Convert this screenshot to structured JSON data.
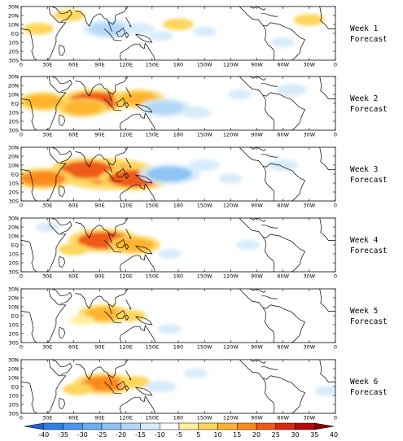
{
  "panels": [
    {
      "label_line1": "Week 1",
      "label_line2": "Forecast"
    },
    {
      "label_line1": "Week 2",
      "label_line2": "Forecast"
    },
    {
      "label_line1": "Week 3",
      "label_line2": "Forecast"
    },
    {
      "label_line1": "Week 4",
      "label_line2": "Forecast"
    },
    {
      "label_line1": "Week 5",
      "label_line2": "Forecast"
    },
    {
      "label_line1": "Week 6",
      "label_line2": "Forecast"
    }
  ],
  "lat_ticks": [
    "30N",
    "20N",
    "10N",
    "EQ",
    "10S",
    "20S",
    "30S"
  ],
  "lon_ticks": [
    "0",
    "30E",
    "60E",
    "90E",
    "120E",
    "150E",
    "180",
    "150W",
    "120W",
    "90W",
    "60W",
    "30W",
    "0"
  ],
  "colorbar": {
    "labels": [
      "-40",
      "-35",
      "-30",
      "-25",
      "-20",
      "-15",
      "-10",
      "-5",
      "5",
      "10",
      "15",
      "20",
      "25",
      "30",
      "35",
      "40"
    ],
    "colors": [
      "#1f5fd8",
      "#2f7fe8",
      "#4a96ee",
      "#6aaef2",
      "#8ec4f4",
      "#b3d8f7",
      "#d7ecfa",
      "#ffffff",
      "#fff0a0",
      "#ffd65c",
      "#ffb42e",
      "#fb8a1a",
      "#ef5a14",
      "#d8280f",
      "#b40a0a",
      "#8a0000"
    ]
  },
  "anomaly_features": [
    {
      "panel": 1,
      "items": [
        {
          "lon": 100,
          "lat": 5,
          "value": -15
        },
        {
          "lon": 135,
          "lat": 5,
          "value": -10
        },
        {
          "lon": 160,
          "lat": -3,
          "value": -5
        },
        {
          "lon": 210,
          "lat": 2,
          "value": -5
        },
        {
          "lon": 55,
          "lat": 20,
          "value": 10
        },
        {
          "lon": 20,
          "lat": 5,
          "value": 10
        },
        {
          "lon": 180,
          "lat": 10,
          "value": 10
        },
        {
          "lon": 330,
          "lat": 15,
          "value": 10
        },
        {
          "lon": 300,
          "lat": -10,
          "value": -5
        }
      ]
    },
    {
      "panel": 2,
      "items": [
        {
          "lon": 85,
          "lat": 3,
          "value": 25
        },
        {
          "lon": 70,
          "lat": -5,
          "value": 15
        },
        {
          "lon": 25,
          "lat": 2,
          "value": 15
        },
        {
          "lon": 135,
          "lat": 5,
          "value": 15
        },
        {
          "lon": 165,
          "lat": -5,
          "value": -15
        },
        {
          "lon": 200,
          "lat": -10,
          "value": -10
        },
        {
          "lon": 310,
          "lat": 15,
          "value": -10
        },
        {
          "lon": 250,
          "lat": 10,
          "value": -5
        }
      ]
    },
    {
      "panel": 3,
      "items": [
        {
          "lon": 100,
          "lat": 0,
          "value": 40
        },
        {
          "lon": 75,
          "lat": 5,
          "value": 25
        },
        {
          "lon": 130,
          "lat": -5,
          "value": 25
        },
        {
          "lon": 25,
          "lat": -5,
          "value": 20
        },
        {
          "lon": 170,
          "lat": 0,
          "value": -20
        },
        {
          "lon": 210,
          "lat": 10,
          "value": -10
        },
        {
          "lon": 300,
          "lat": 10,
          "value": -10
        },
        {
          "lon": 240,
          "lat": -5,
          "value": -5
        }
      ]
    },
    {
      "panel": 4,
      "items": [
        {
          "lon": 95,
          "lat": 5,
          "value": 25
        },
        {
          "lon": 130,
          "lat": 0,
          "value": 15
        },
        {
          "lon": 60,
          "lat": -5,
          "value": 10
        },
        {
          "lon": 170,
          "lat": -10,
          "value": -5
        },
        {
          "lon": 260,
          "lat": 0,
          "value": -5
        },
        {
          "lon": 30,
          "lat": 20,
          "value": -5
        }
      ]
    },
    {
      "panel": 5,
      "items": [
        {
          "lon": 95,
          "lat": 2,
          "value": 15
        },
        {
          "lon": 125,
          "lat": 0,
          "value": 10
        },
        {
          "lon": 70,
          "lat": -5,
          "value": 5
        },
        {
          "lon": 170,
          "lat": -15,
          "value": -5
        }
      ]
    },
    {
      "panel": 6,
      "items": [
        {
          "lon": 95,
          "lat": 3,
          "value": 20
        },
        {
          "lon": 130,
          "lat": 5,
          "value": 10
        },
        {
          "lon": 65,
          "lat": -3,
          "value": 10
        },
        {
          "lon": 160,
          "lat": 0,
          "value": -10
        },
        {
          "lon": 200,
          "lat": 15,
          "value": -5
        },
        {
          "lon": 350,
          "lat": -5,
          "value": -5
        }
      ]
    }
  ]
}
